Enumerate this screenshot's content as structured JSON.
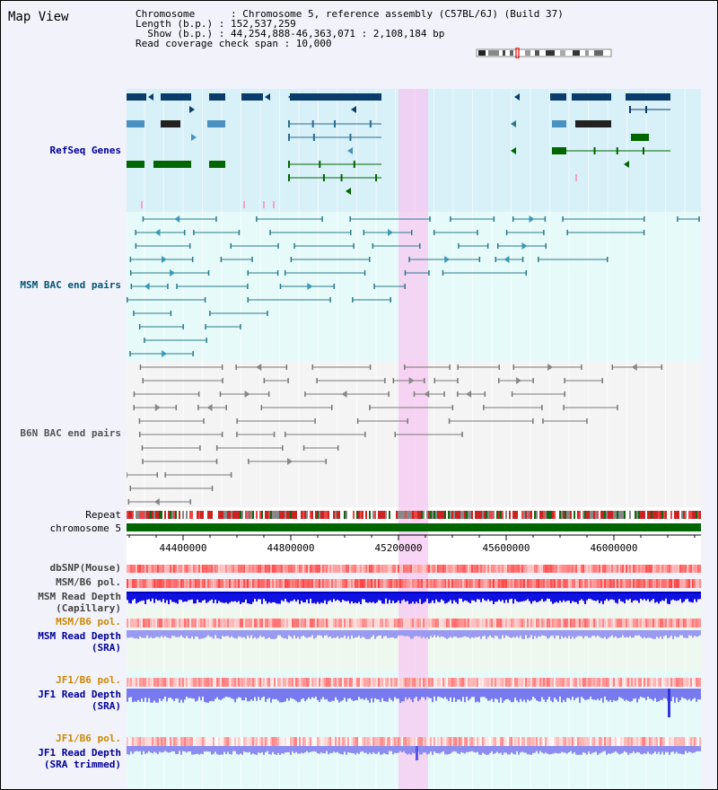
{
  "window": {
    "title": "Map View"
  },
  "header": {
    "lines": [
      "Chromosome      : Chromosome 5, reference assembly (C57BL/6J) (Build 37)",
      "Length (b.p.) : 152,537,259",
      "  Show (b.p.) : 44,254,888-46,363,071 : 2,108,184 bp",
      "Read coverage check span : 10,000"
    ]
  },
  "tracks": {
    "refseq": "RefSeq Genes",
    "msm_bac": "MSM BAC end pairs",
    "b6n_bac": "B6N BAC end pairs",
    "repeat": "Repeat",
    "chromosome": "chromosome 5",
    "dbsnp": "dbSNP(Mouse)",
    "msm_b6_pol_1": "MSM/B6 pol.",
    "msm_depth_cap_1": "MSM Read Depth",
    "msm_depth_cap_2": "(Capillary)",
    "msm_b6_pol_2": "MSM/B6 pol.",
    "msm_depth_sra_1": "MSM Read Depth",
    "msm_depth_sra_2": "(SRA)",
    "jf1_b6_pol_1": "JF1/B6 pol.",
    "jf1_depth_sra_1": "JF1 Read Depth",
    "jf1_depth_sra_2": "(SRA)",
    "jf1_b6_pol_2": "JF1/B6 pol.",
    "jf1_depth_trim_1": "JF1 Read Depth",
    "jf1_depth_trim_2": "(SRA trimmed)"
  },
  "axis": {
    "ticks": [
      "44400000",
      "44800000",
      "45200000",
      "45600000",
      "46000000"
    ]
  },
  "colors": {
    "refseq_label": "#000099",
    "msm_bac_label": "#005577",
    "b6n_bac_label": "#555555",
    "pol_label_orange": "#cc8800",
    "depth_label_blue": "#000099",
    "highlight": "#f7c8f2",
    "chromosome_bar": "#006600"
  }
}
